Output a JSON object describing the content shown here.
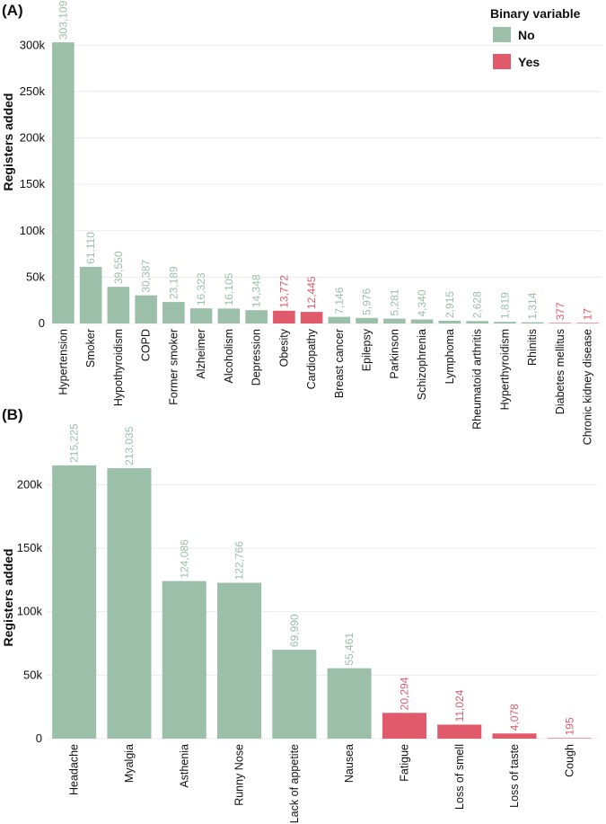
{
  "legend": {
    "title": "Binary variable",
    "items": [
      {
        "label": "No",
        "color": "#9bbfa9"
      },
      {
        "label": "Yes",
        "color": "#e05a6c"
      }
    ]
  },
  "chart_data": [
    {
      "type": "bar",
      "panel_label": "(A)",
      "ylabel": "Registers added",
      "xlabel": "",
      "ylim": [
        0,
        310000
      ],
      "yticks": [
        0,
        50000,
        100000,
        150000,
        200000,
        250000,
        300000
      ],
      "ytick_labels": [
        "0",
        "50k",
        "100k",
        "150k",
        "200k",
        "250k",
        "300k"
      ],
      "categories": [
        "Hypertension",
        "Smoker",
        "Hypothyroidism",
        "COPD",
        "Former smoker",
        "Alzheimer",
        "Alcoholism",
        "Depression",
        "Obesity",
        "Cardiopathy",
        "Breast cancer",
        "Epilepsy",
        "Parkinson",
        "Schizophrenia",
        "Lymphoma",
        "Rheumatoid arthritis",
        "Hyperthyroidism",
        "Rhinitis",
        "Diabetes mellitus",
        "Chronic kidney disease"
      ],
      "values": [
        303109,
        61110,
        39550,
        30387,
        23189,
        16323,
        16105,
        14348,
        13772,
        12445,
        7146,
        5976,
        5281,
        4340,
        2915,
        2628,
        1819,
        1314,
        377,
        17
      ],
      "value_labels": [
        "303,109",
        "61,110",
        "39,550",
        "30,387",
        "23,189",
        "16,323",
        "16,105",
        "14,348",
        "13,772",
        "12,445",
        "7,146",
        "5,976",
        "5,281",
        "4,340",
        "2,915",
        "2,628",
        "1,819",
        "1,314",
        "377",
        "17"
      ],
      "binary": [
        "No",
        "No",
        "No",
        "No",
        "No",
        "No",
        "No",
        "No",
        "Yes",
        "Yes",
        "No",
        "No",
        "No",
        "No",
        "No",
        "No",
        "No",
        "No",
        "Yes",
        "Yes"
      ],
      "legend_position": "top-right"
    },
    {
      "type": "bar",
      "panel_label": "(B)",
      "ylabel": "Registers added",
      "xlabel": "",
      "ylim": [
        0,
        230000
      ],
      "yticks": [
        0,
        50000,
        100000,
        150000,
        200000
      ],
      "ytick_labels": [
        "0",
        "50k",
        "100k",
        "150k",
        "200k"
      ],
      "categories": [
        "Headache",
        "Myalgia",
        "Asthenia",
        "Runny Nose",
        "Lack of appetite",
        "Nausea",
        "Fatigue",
        "Loss of smell",
        "Loss of taste",
        "Cough"
      ],
      "values": [
        215225,
        213035,
        124086,
        122766,
        69990,
        55461,
        20294,
        11024,
        4078,
        195
      ],
      "value_labels": [
        "215,225",
        "213,035",
        "124,086",
        "122,766",
        "69,990",
        "55,461",
        "20,294",
        "11,024",
        "4,078",
        "195"
      ],
      "binary": [
        "No",
        "No",
        "No",
        "No",
        "No",
        "No",
        "Yes",
        "Yes",
        "Yes",
        "Yes"
      ]
    }
  ]
}
